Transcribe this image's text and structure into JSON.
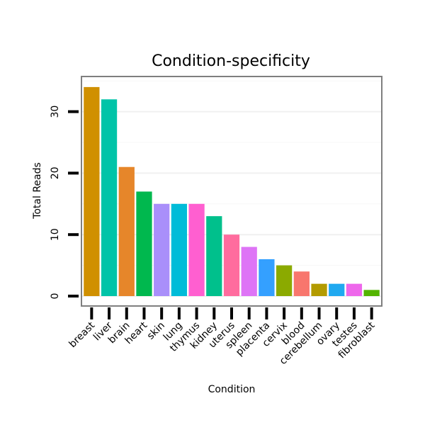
{
  "chart_data": {
    "type": "bar",
    "title": "Condition-specificity",
    "xlabel": "Condition",
    "ylabel": "Total Reads",
    "ylim": [
      0,
      35.6
    ],
    "yticks": [
      0,
      10,
      20,
      30
    ],
    "grid": true,
    "categories": [
      "breast",
      "liver",
      "brain",
      "heart",
      "skin",
      "lung",
      "thymus",
      "kidney",
      "uterus",
      "spleen",
      "placenta",
      "cervix",
      "blood",
      "cerebellum",
      "ovary",
      "testes",
      "fibroblast"
    ],
    "values": [
      34,
      32,
      21,
      17,
      15,
      15,
      15,
      13,
      10,
      8,
      6,
      5,
      4,
      2,
      2,
      2,
      1
    ],
    "colors": [
      "#D09000",
      "#00C4A8",
      "#E6862A",
      "#00B84E",
      "#A98FFA",
      "#00BCD8",
      "#FF5FD0",
      "#00C08C",
      "#FF6C9E",
      "#DE74F6",
      "#34A0FF",
      "#8BAA00",
      "#F8766D",
      "#B39B00",
      "#20A9F0",
      "#EE67EB",
      "#53B400"
    ]
  }
}
